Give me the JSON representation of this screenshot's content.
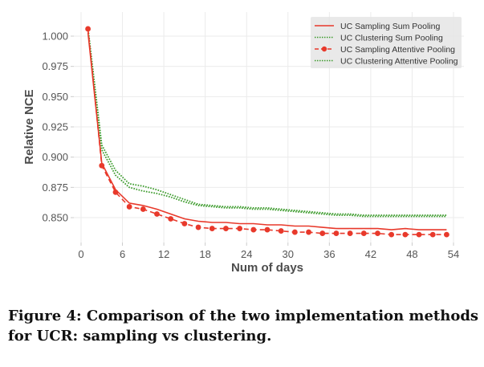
{
  "chart_data": {
    "type": "line",
    "title": "",
    "xlabel": "Num of days",
    "ylabel": "Relative NCE",
    "xlim": [
      -1,
      55
    ],
    "ylim": [
      0.832,
      1.01
    ],
    "xticks": [
      0,
      6,
      12,
      18,
      24,
      30,
      36,
      42,
      48,
      54
    ],
    "xtick_labels": [
      "0",
      "6",
      "12",
      "18",
      "24",
      "30",
      "36",
      "42",
      "48",
      "54"
    ],
    "yticks": [
      0.85,
      0.875,
      0.9,
      0.925,
      0.95,
      0.975,
      1.0
    ],
    "ytick_labels": [
      "0.850",
      "0.875",
      "0.900",
      "0.925",
      "0.950",
      "0.975",
      "1.000"
    ],
    "grid": true,
    "legend_position": "top-right",
    "x": [
      1,
      3,
      5,
      7,
      9,
      11,
      13,
      15,
      17,
      19,
      21,
      23,
      25,
      27,
      29,
      31,
      33,
      35,
      37,
      39,
      41,
      43,
      45,
      47,
      49,
      51,
      53
    ],
    "series": [
      {
        "name": "UC Sampling Sum Pooling",
        "color": "#e8392b",
        "style": "solid",
        "marker": false,
        "values": [
          1.003,
          0.895,
          0.873,
          0.862,
          0.86,
          0.857,
          0.853,
          0.849,
          0.847,
          0.846,
          0.846,
          0.845,
          0.845,
          0.844,
          0.844,
          0.843,
          0.843,
          0.842,
          0.841,
          0.841,
          0.841,
          0.841,
          0.84,
          0.841,
          0.84,
          0.84,
          0.84
        ]
      },
      {
        "name": "UC Clustering Sum Pooling",
        "color": "#3a9a2a",
        "style": "dotted",
        "marker": false,
        "values": [
          1.007,
          0.91,
          0.889,
          0.878,
          0.876,
          0.873,
          0.869,
          0.865,
          0.861,
          0.86,
          0.859,
          0.859,
          0.858,
          0.858,
          0.857,
          0.856,
          0.855,
          0.854,
          0.853,
          0.853,
          0.852,
          0.852,
          0.852,
          0.852,
          0.852,
          0.852,
          0.852
        ]
      },
      {
        "name": "UC Sampling Attentive Pooling",
        "color": "#e8392b",
        "style": "dashed",
        "marker": true,
        "values": [
          1.006,
          0.893,
          0.871,
          0.859,
          0.857,
          0.853,
          0.849,
          0.845,
          0.842,
          0.841,
          0.841,
          0.841,
          0.84,
          0.84,
          0.839,
          0.838,
          0.838,
          0.837,
          0.837,
          0.837,
          0.837,
          0.837,
          0.836,
          0.836,
          0.836,
          0.836,
          0.836
        ]
      },
      {
        "name": "UC Clustering Attentive Pooling",
        "color": "#3a9a2a",
        "style": "dotted",
        "marker": false,
        "values": [
          1.005,
          0.906,
          0.885,
          0.875,
          0.872,
          0.87,
          0.867,
          0.863,
          0.86,
          0.859,
          0.858,
          0.858,
          0.857,
          0.857,
          0.856,
          0.855,
          0.854,
          0.853,
          0.852,
          0.852,
          0.851,
          0.851,
          0.851,
          0.851,
          0.851,
          0.851,
          0.851
        ]
      }
    ]
  },
  "caption": "Figure 4: Comparison of the two implementation methods for UCR: sampling vs clustering."
}
